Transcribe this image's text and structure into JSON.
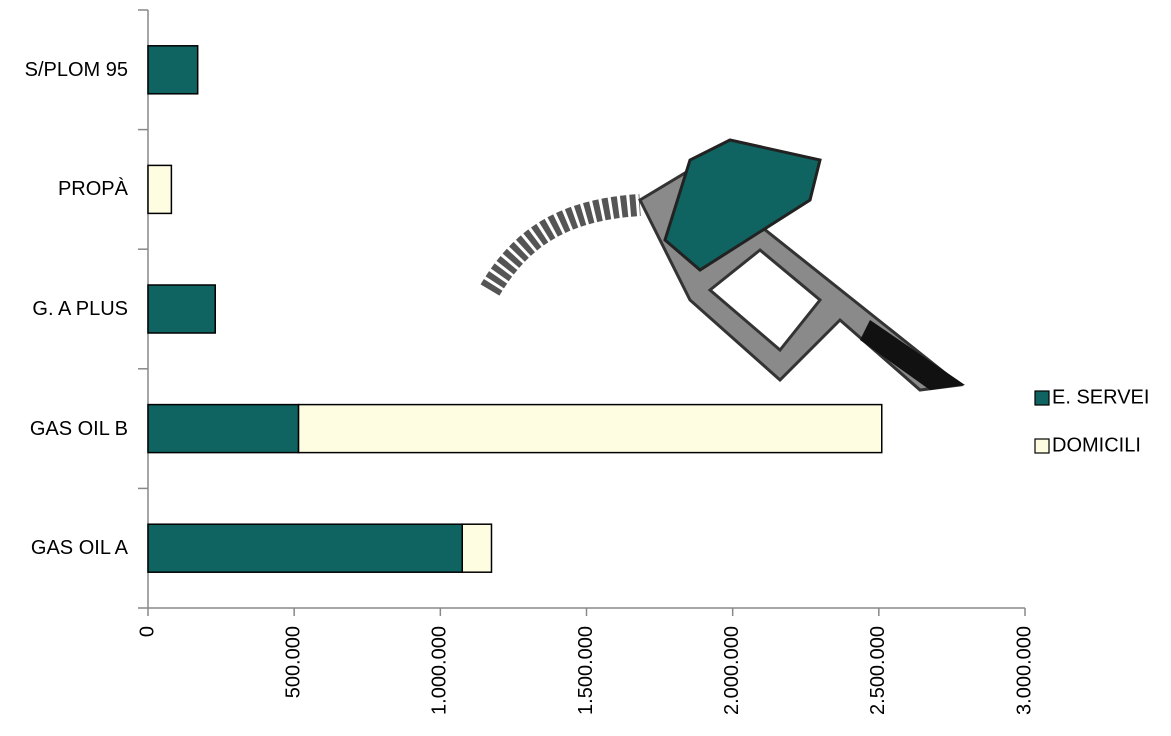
{
  "chart_data": {
    "type": "stacked-horizontal-bar",
    "categories": [
      "GAS OIL A",
      "GAS OIL B",
      "G. A PLUS",
      "PROPÀ",
      "S/PLOM 95"
    ],
    "series": [
      {
        "name": "E. SERVEI",
        "color": "#0f6461",
        "values": [
          1075000,
          515000,
          230000,
          0,
          170000
        ]
      },
      {
        "name": "DOMICILI",
        "color": "#fffde1",
        "values": [
          100000,
          1995000,
          0,
          80000,
          0
        ]
      }
    ],
    "xlim": [
      0,
      3000000
    ],
    "xticks": [
      0,
      {
        "value": 500000,
        "label": "500.000"
      },
      {
        "value": 1000000,
        "label": "1.000.000"
      },
      {
        "value": 1500000,
        "label": "1.500.000"
      },
      {
        "value": 2000000,
        "label": "2.000.000"
      },
      {
        "value": 2500000,
        "label": "2.500.000"
      },
      {
        "value": 3000000,
        "label": "3.000.000"
      }
    ],
    "legend": "right"
  }
}
